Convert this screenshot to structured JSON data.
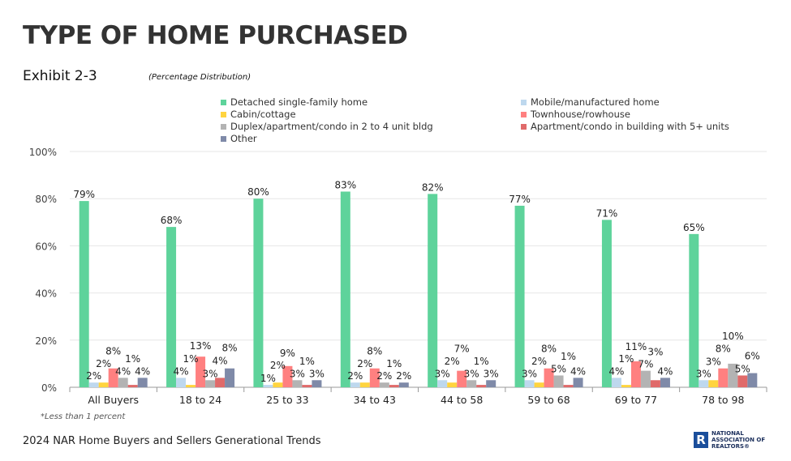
{
  "title": "TYPE OF HOME PURCHASED",
  "exhibit": "Exhibit 2-3",
  "subtitle": "(Percentage Distribution)",
  "note": "*Less than 1 percent",
  "footer": "2024 NAR Home Buyers and Sellers Generational Trends",
  "logo": {
    "letter": "R",
    "lines": [
      "NATIONAL",
      "ASSOCIATION OF",
      "REALTORS®"
    ]
  },
  "chart_data": {
    "type": "bar",
    "title": "TYPE OF HOME PURCHASED",
    "ylim": [
      0,
      100
    ],
    "yticks": [
      "0%",
      "20%",
      "40%",
      "60%",
      "80%",
      "100%"
    ],
    "legend_position": "top",
    "categories": [
      "All Buyers",
      "18 to 24",
      "25 to 33",
      "34 to 43",
      "44 to 58",
      "59 to 68",
      "69 to 77",
      "78 to 98"
    ],
    "series": [
      {
        "name": "Detached single-family home",
        "color": "#5ed39b",
        "values": [
          79,
          68,
          80,
          83,
          82,
          77,
          71,
          65
        ]
      },
      {
        "name": "Mobile/manufactured home",
        "color": "#bed8ee",
        "values": [
          2,
          4,
          1,
          2,
          3,
          3,
          4,
          3
        ]
      },
      {
        "name": "Cabin/cottage",
        "color": "#ffd43f",
        "values": [
          2,
          1,
          2,
          2,
          2,
          2,
          1,
          3
        ]
      },
      {
        "name": "Townhouse/rowhouse",
        "color": "#ff8080",
        "values": [
          8,
          13,
          9,
          8,
          7,
          8,
          11,
          8
        ]
      },
      {
        "name": "Duplex/apartment/condo in 2 to 4 unit bldg",
        "color": "#b3b3b3",
        "values": [
          4,
          3,
          3,
          2,
          3,
          5,
          7,
          10
        ]
      },
      {
        "name": "Apartment/condo in building with 5+ units",
        "color": "#e06a6a",
        "values": [
          1,
          4,
          1,
          1,
          1,
          1,
          3,
          5
        ]
      },
      {
        "name": "Other",
        "color": "#7f8aa8",
        "values": [
          4,
          8,
          3,
          2,
          3,
          4,
          4,
          6
        ]
      }
    ]
  }
}
